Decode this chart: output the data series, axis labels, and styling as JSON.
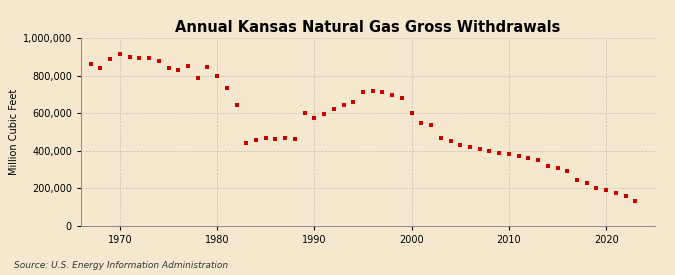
{
  "title": "Annual Kansas Natural Gas Gross Withdrawals",
  "ylabel": "Million Cubic Feet",
  "source": "Source: U.S. Energy Information Administration",
  "background_color": "#f5e8ce",
  "line_color": "#cc0000",
  "marker_color": "#cc0000",
  "grid_color": "#b0b0b0",
  "years": [
    1967,
    1968,
    1969,
    1970,
    1971,
    1972,
    1973,
    1974,
    1975,
    1976,
    1977,
    1978,
    1979,
    1980,
    1981,
    1982,
    1983,
    1984,
    1985,
    1986,
    1987,
    1988,
    1989,
    1990,
    1991,
    1992,
    1993,
    1994,
    1995,
    1996,
    1997,
    1998,
    1999,
    2000,
    2001,
    2002,
    2003,
    2004,
    2005,
    2006,
    2007,
    2008,
    2009,
    2010,
    2011,
    2012,
    2013,
    2014,
    2015,
    2016,
    2017,
    2018,
    2019,
    2020,
    2021,
    2022,
    2023
  ],
  "values": [
    862000,
    840000,
    893000,
    918000,
    900000,
    895000,
    896000,
    882000,
    840000,
    830000,
    852000,
    790000,
    850000,
    800000,
    735000,
    645000,
    440000,
    455000,
    470000,
    462000,
    470000,
    465000,
    600000,
    575000,
    595000,
    625000,
    645000,
    660000,
    715000,
    720000,
    715000,
    700000,
    680000,
    600000,
    550000,
    540000,
    470000,
    450000,
    430000,
    420000,
    410000,
    400000,
    390000,
    380000,
    370000,
    360000,
    350000,
    320000,
    305000,
    290000,
    245000,
    225000,
    200000,
    190000,
    175000,
    160000,
    130000
  ],
  "ylim": [
    0,
    1000000
  ],
  "xlim": [
    1966,
    2025
  ],
  "ytick_values": [
    0,
    200000,
    400000,
    600000,
    800000,
    1000000
  ],
  "xtick_values": [
    1970,
    1980,
    1990,
    2000,
    2010,
    2020
  ],
  "title_fontsize": 10.5,
  "axis_fontsize": 7,
  "source_fontsize": 6.5,
  "marker_size": 2.8
}
